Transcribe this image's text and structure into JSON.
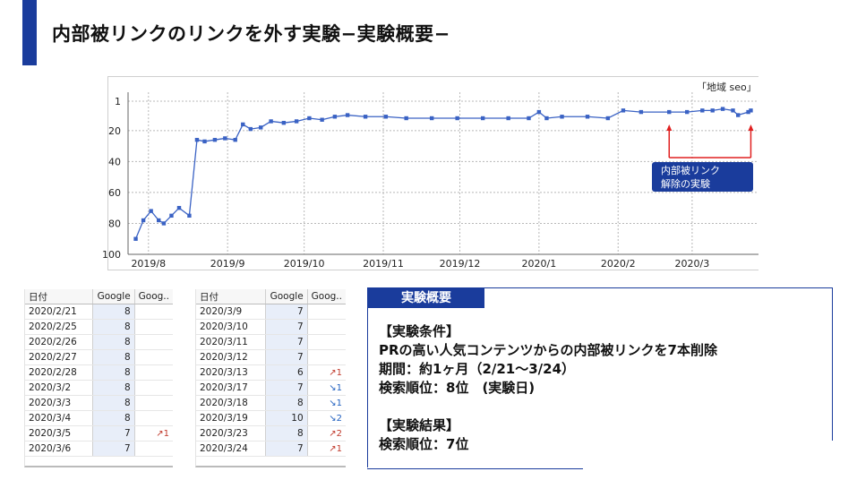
{
  "slide": {
    "title": "内部被リンクのリンクを外す実験−実験概要−",
    "accent_color": "#1a3c9c"
  },
  "chart": {
    "legend_label": "「地域 seo」",
    "callout_text_line1": "内部被リンク",
    "callout_text_line2": "解除の実験",
    "callout_color": "#1a3c9c",
    "marker_color": "#e02020"
  },
  "chart_data": {
    "type": "line",
    "title": "",
    "ylabel": "",
    "xlabel": "",
    "y_reversed": true,
    "ylim": [
      1,
      100
    ],
    "y_ticks": [
      "1",
      "20",
      "40",
      "60",
      "80",
      "100"
    ],
    "x_ticks": [
      "2019/8",
      "2019/9",
      "2019/10",
      "2019/11",
      "2019/12",
      "2020/1",
      "2020/2",
      "2020/3"
    ],
    "grid": true,
    "series": [
      {
        "color": "#3a62c4",
        "points": [
          [
            "2019/7/27",
            90
          ],
          [
            "2019/7/30",
            78
          ],
          [
            "2019/8/2",
            72
          ],
          [
            "2019/8/5",
            78
          ],
          [
            "2019/8/7",
            80
          ],
          [
            "2019/8/10",
            75
          ],
          [
            "2019/8/13",
            70
          ],
          [
            "2019/8/17",
            75
          ],
          [
            "2019/8/20",
            26
          ],
          [
            "2019/8/23",
            27
          ],
          [
            "2019/8/27",
            26
          ],
          [
            "2019/8/31",
            25
          ],
          [
            "2019/9/4",
            26
          ],
          [
            "2019/9/7",
            16
          ],
          [
            "2019/9/10",
            19
          ],
          [
            "2019/9/14",
            18
          ],
          [
            "2019/9/18",
            14
          ],
          [
            "2019/9/23",
            15
          ],
          [
            "2019/9/28",
            14
          ],
          [
            "2019/10/3",
            12
          ],
          [
            "2019/10/8",
            13
          ],
          [
            "2019/10/13",
            11
          ],
          [
            "2019/10/18",
            10
          ],
          [
            "2019/10/25",
            11
          ],
          [
            "2019/11/2",
            11
          ],
          [
            "2019/11/10",
            12
          ],
          [
            "2019/11/20",
            12
          ],
          [
            "2019/11/30",
            12
          ],
          [
            "2019/12/10",
            12
          ],
          [
            "2019/12/20",
            12
          ],
          [
            "2019/12/28",
            12
          ],
          [
            "2020/1/1",
            8
          ],
          [
            "2020/1/4",
            12
          ],
          [
            "2020/1/10",
            11
          ],
          [
            "2020/1/20",
            11
          ],
          [
            "2020/1/28",
            12
          ],
          [
            "2020/2/3",
            7
          ],
          [
            "2020/2/10",
            8
          ],
          [
            "2020/2/21",
            8
          ],
          [
            "2020/2/28",
            8
          ],
          [
            "2020/3/5",
            7
          ],
          [
            "2020/3/9",
            7
          ],
          [
            "2020/3/13",
            6
          ],
          [
            "2020/3/17",
            7
          ],
          [
            "2020/3/19",
            10
          ],
          [
            "2020/3/23",
            8
          ],
          [
            "2020/3/24",
            7
          ]
        ]
      }
    ]
  },
  "table1": {
    "headers": [
      "日付",
      "Google",
      "Goog.."
    ],
    "rows": [
      [
        "2020/2/21",
        "8",
        ""
      ],
      [
        "2020/2/25",
        "8",
        ""
      ],
      [
        "2020/2/26",
        "8",
        ""
      ],
      [
        "2020/2/27",
        "8",
        ""
      ],
      [
        "2020/2/28",
        "8",
        ""
      ],
      [
        "2020/3/2",
        "8",
        ""
      ],
      [
        "2020/3/3",
        "8",
        ""
      ],
      [
        "2020/3/4",
        "8",
        ""
      ],
      [
        "2020/3/5",
        "7",
        "↗1"
      ],
      [
        "2020/3/6",
        "7",
        ""
      ]
    ]
  },
  "table2": {
    "headers": [
      "日付",
      "Google",
      "Goog.."
    ],
    "rows": [
      [
        "2020/3/9",
        "7",
        ""
      ],
      [
        "2020/3/10",
        "7",
        ""
      ],
      [
        "2020/3/11",
        "7",
        ""
      ],
      [
        "2020/3/12",
        "7",
        ""
      ],
      [
        "2020/3/13",
        "6",
        "↗1"
      ],
      [
        "2020/3/17",
        "7",
        "↘1"
      ],
      [
        "2020/3/18",
        "8",
        "↘1"
      ],
      [
        "2020/3/19",
        "10",
        "↘2"
      ],
      [
        "2020/3/23",
        "8",
        "↗2"
      ],
      [
        "2020/3/24",
        "7",
        "↗1"
      ]
    ]
  },
  "summary": {
    "tab_label": "実験概要",
    "condition_header": "【実験条件】",
    "condition_line1": "PRの高い人気コンテンツからの内部被リンクを7本削除",
    "condition_line2": "期間：約1ヶ月（2/21〜3/24）",
    "condition_line3": "検索順位：8位　(実験日)",
    "result_header": "【実験結果】",
    "result_line1": "検索順位：7位"
  }
}
